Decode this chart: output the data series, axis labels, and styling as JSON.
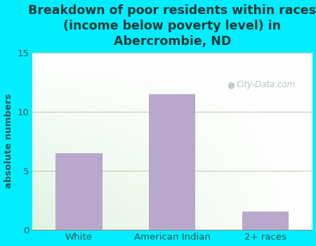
{
  "categories": [
    "White",
    "American Indian",
    "2+ races"
  ],
  "values": [
    6.5,
    11.5,
    1.5
  ],
  "bar_color": "#b8a8cc",
  "title": "Breakdown of poor residents within races\n(income below poverty level) in\nAbercrombie, ND",
  "ylabel": "absolute numbers",
  "ylim": [
    0,
    15
  ],
  "yticks": [
    0,
    5,
    10,
    15
  ],
  "bg_color": "#00eeff",
  "title_color": "#1a3a3a",
  "axis_color": "#2a5555",
  "watermark": "City-Data.com",
  "title_fontsize": 12.5,
  "ylabel_fontsize": 9.5,
  "tick_fontsize": 9.5,
  "grid_color": "#c0c8b0",
  "gradient_topleft": "#c8e8c0",
  "gradient_topright": "#e8f4f0",
  "gradient_bottomleft": "#d8ecc8",
  "gradient_bottomright": "#ffffff"
}
